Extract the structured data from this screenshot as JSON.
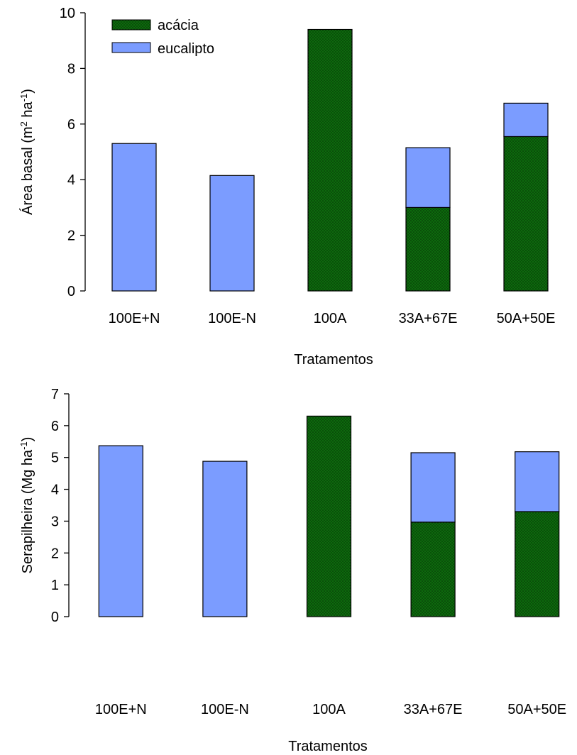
{
  "colors": {
    "acacia": "#0b5d0b",
    "eucalipto": "#7b9cff",
    "axis": "#000000"
  },
  "legend": {
    "placement": "top-left",
    "items": [
      {
        "label": "acácia",
        "color": "#0b5d0b",
        "pattern": "dots"
      },
      {
        "label": "eucalipto",
        "color": "#7b9cff",
        "pattern": "solid"
      }
    ]
  },
  "chart_data": [
    {
      "type": "bar",
      "stacked": true,
      "categories": [
        "100E+N",
        "100E-N",
        "100A",
        "33A+67E",
        "50A+50E"
      ],
      "series": [
        {
          "name": "acácia",
          "values": [
            0,
            0,
            9.4,
            3.0,
            5.55
          ]
        },
        {
          "name": "eucalipto",
          "values": [
            5.3,
            4.15,
            0,
            2.15,
            1.2
          ]
        }
      ],
      "xlabel": "Tratamentos",
      "ylabel_main": "Área basal (m",
      "ylabel_sup1": "2",
      "ylabel_mid": " ha",
      "ylabel_sup2": "-1",
      "ylabel_end": ")",
      "ylim": [
        0,
        10
      ],
      "yticks": [
        "0",
        "2",
        "4",
        "6",
        "8",
        "10"
      ],
      "grid": false
    },
    {
      "type": "bar",
      "stacked": true,
      "categories": [
        "100E+N",
        "100E-N",
        "100A",
        "33A+67E",
        "50A+50E"
      ],
      "series": [
        {
          "name": "acácia",
          "values": [
            0,
            0,
            6.3,
            2.97,
            3.3
          ]
        },
        {
          "name": "eucalipto",
          "values": [
            5.37,
            4.88,
            0,
            2.18,
            1.88
          ]
        }
      ],
      "xlabel": "Tratamentos",
      "ylabel_main": "Serapilheira (Mg ha",
      "ylabel_sup1": "",
      "ylabel_mid": "",
      "ylabel_sup2": "-1",
      "ylabel_end": ")",
      "ylim": [
        0,
        7
      ],
      "yticks": [
        "0",
        "1",
        "2",
        "3",
        "4",
        "5",
        "6",
        "7"
      ],
      "grid": false
    }
  ]
}
